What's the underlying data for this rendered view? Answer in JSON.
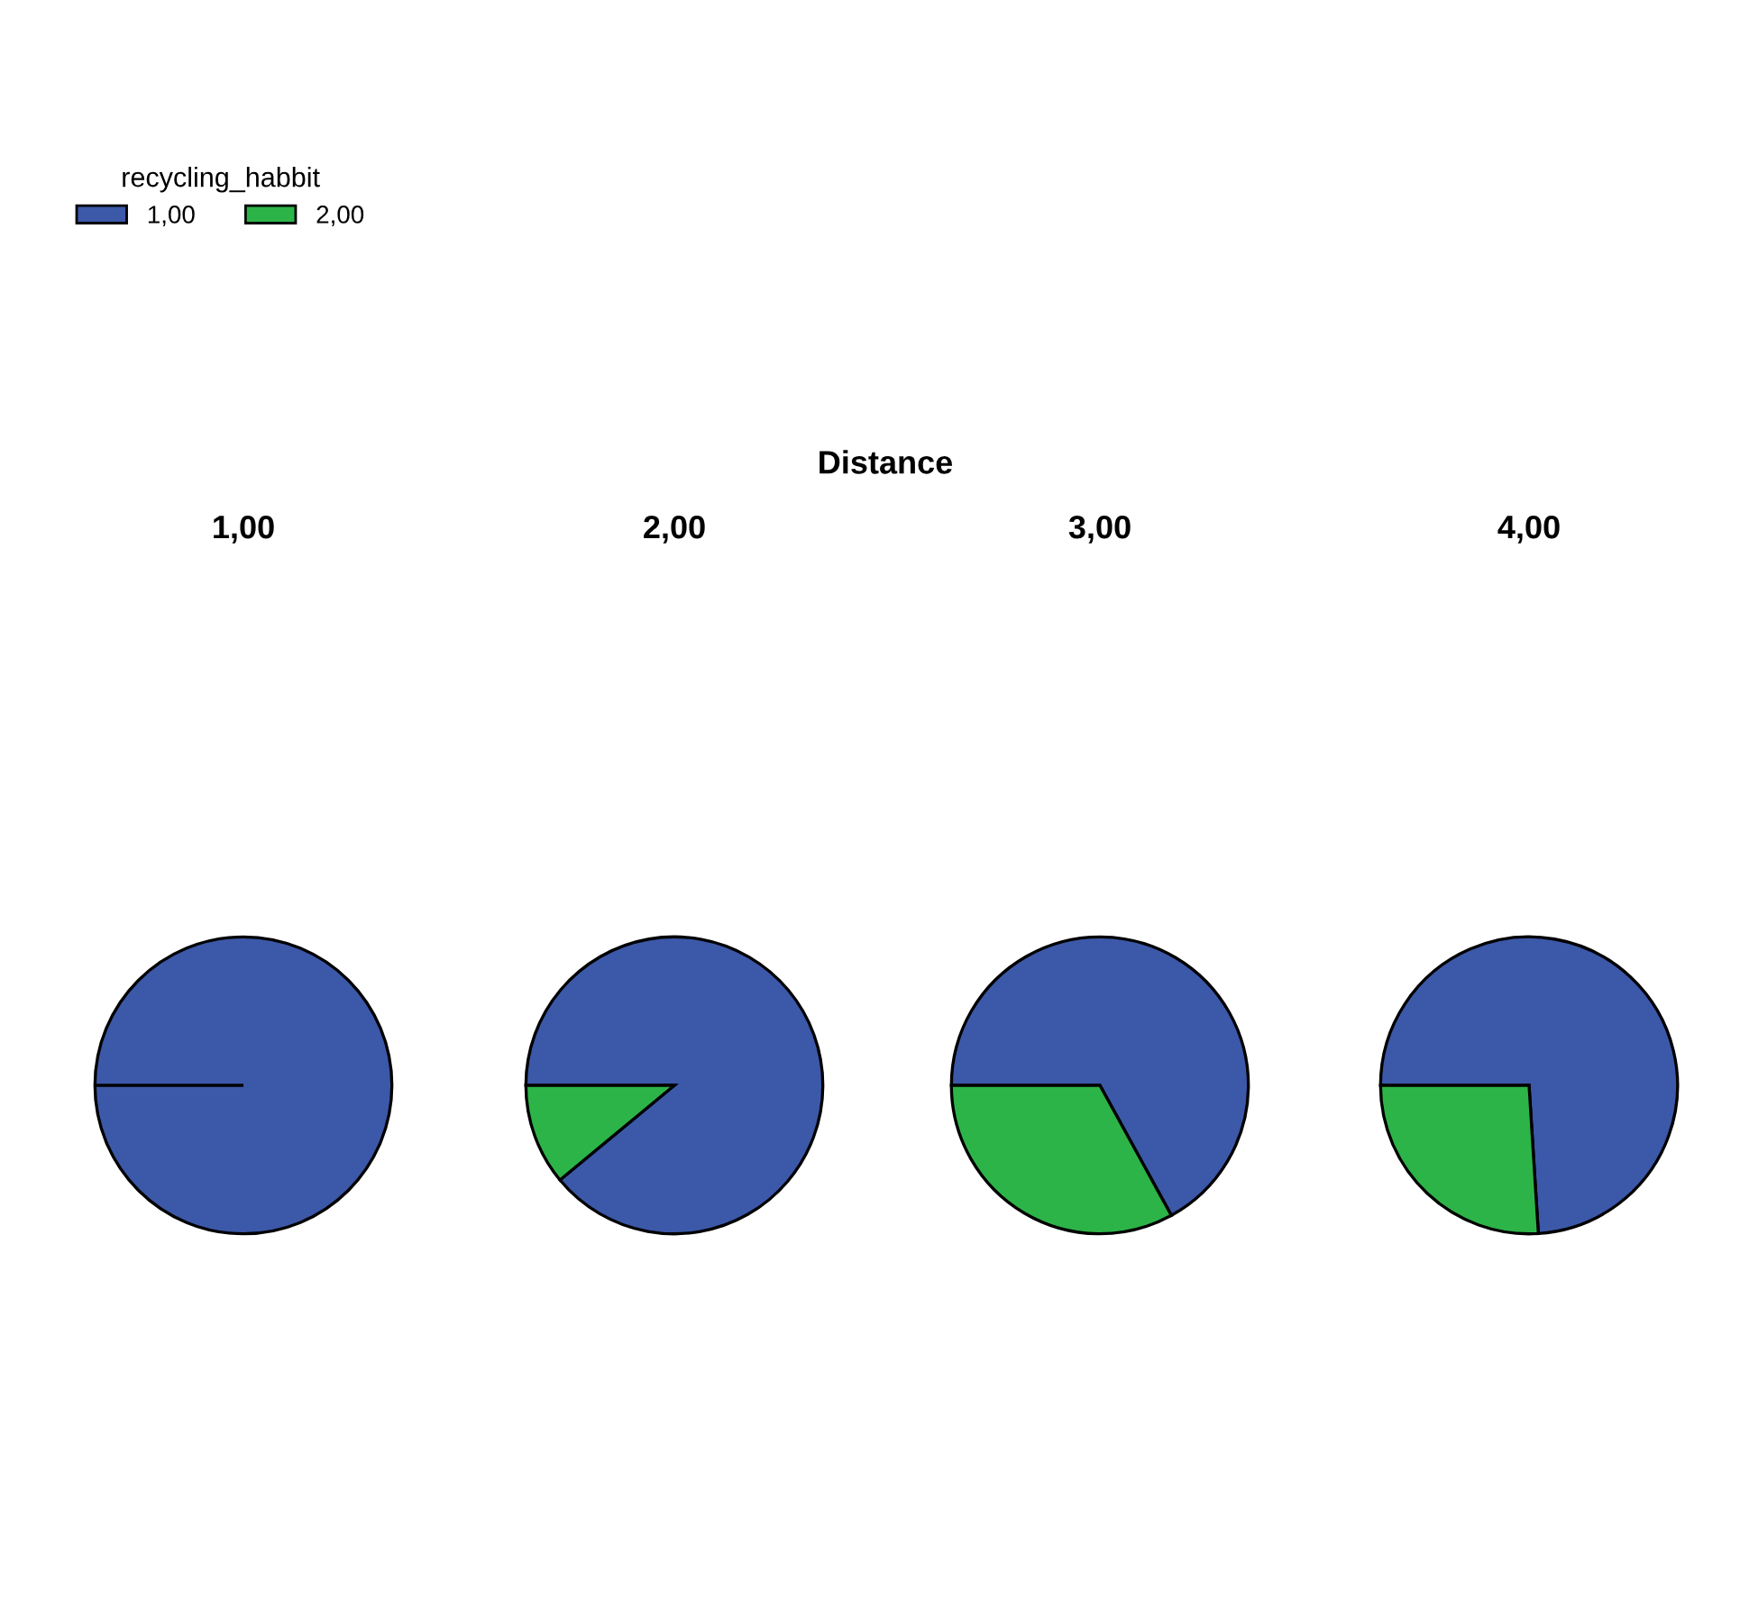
{
  "chart_data": [
    {
      "type": "pie",
      "title": "1,00",
      "categories": [
        "1,00",
        "2,00"
      ],
      "values": [
        100,
        0
      ],
      "colors": [
        "#3c58a8",
        "#2db448"
      ],
      "legend": "top left",
      "legend_title": "recycling_habbit",
      "annotations": [
        "Distance"
      ]
    },
    {
      "type": "pie",
      "title": "2,00",
      "categories": [
        null,
        null
      ],
      "values": [
        89,
        11
      ],
      "colors": [
        "#3c58a8",
        "#2db448"
      ]
    },
    {
      "type": "pie",
      "title": "3,00",
      "categories": [
        null,
        null
      ],
      "values": [
        67,
        33
      ],
      "colors": [
        "#3c58a8",
        "#2db448"
      ]
    },
    {
      "type": "pie",
      "title": "4,00",
      "categories": [
        null,
        null
      ],
      "values": [
        74,
        26
      ],
      "colors": [
        "#3c58a8",
        "#2db448"
      ]
    }
  ]
}
